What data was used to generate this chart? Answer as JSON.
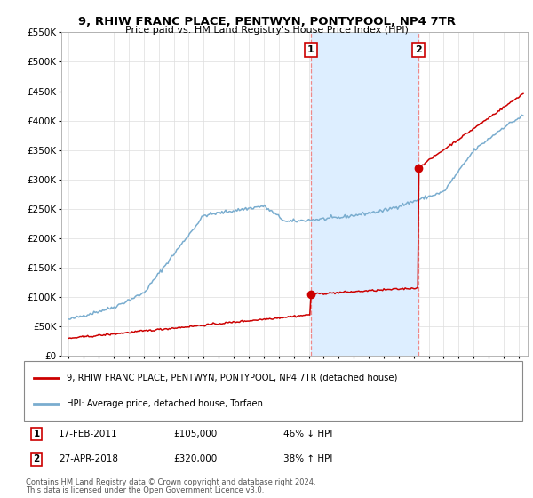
{
  "title": "9, RHIW FRANC PLACE, PENTWYN, PONTYPOOL, NP4 7TR",
  "subtitle": "Price paid vs. HM Land Registry's House Price Index (HPI)",
  "legend_property": "9, RHIW FRANC PLACE, PENTWYN, PONTYPOOL, NP4 7TR (detached house)",
  "legend_hpi": "HPI: Average price, detached house, Torfaen",
  "sale1_label": "1",
  "sale1_date": "17-FEB-2011",
  "sale1_price": 105000,
  "sale1_pct": "46% ↓ HPI",
  "sale2_label": "2",
  "sale2_date": "27-APR-2018",
  "sale2_price": 320000,
  "sale2_pct": "38% ↑ HPI",
  "footnote1": "Contains HM Land Registry data © Crown copyright and database right 2024.",
  "footnote2": "This data is licensed under the Open Government Licence v3.0.",
  "ylim": [
    0,
    550000
  ],
  "property_color": "#cc0000",
  "hpi_color": "#7aadcf",
  "shade_color": "#ddeeff",
  "vline_color": "#ee8888",
  "point_color": "#cc0000",
  "background_color": "#ffffff",
  "sale1_year_dec": 2011.12,
  "sale2_year_dec": 2018.3
}
